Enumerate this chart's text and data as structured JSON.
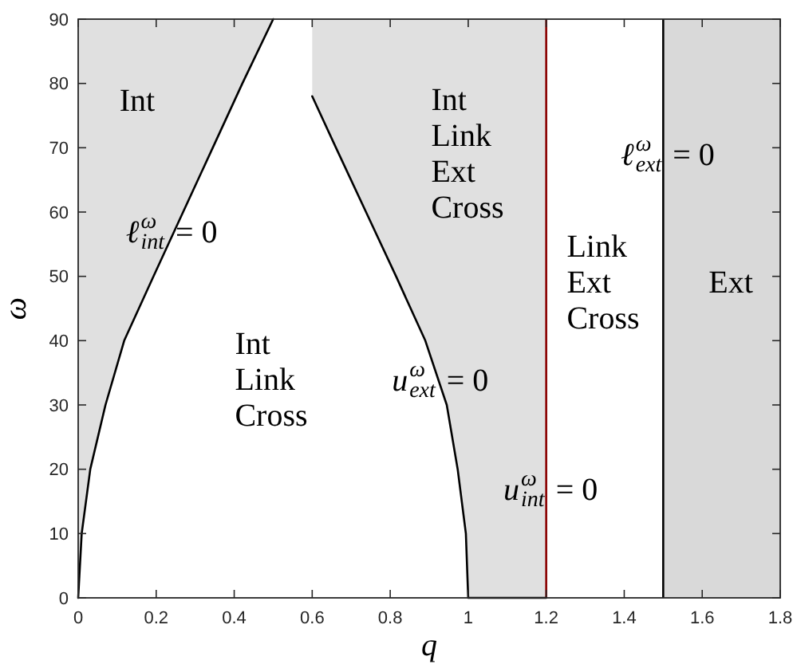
{
  "chart_data": {
    "type": "line",
    "xlabel": "q",
    "ylabel": "ω",
    "xlim": [
      0,
      1.8
    ],
    "xticks": [
      0,
      0.2,
      0.4,
      0.6,
      0.8,
      1,
      1.2,
      1.4,
      1.6,
      1.8
    ],
    "ylim": [
      0,
      90
    ],
    "yticks": [
      0,
      10,
      20,
      30,
      40,
      50,
      60,
      70,
      80,
      90
    ],
    "series": [
      {
        "color": "#000000",
        "x": [
          0,
          0.009,
          0.031,
          0.07,
          0.118,
          0.193,
          0.269,
          0.345,
          0.421,
          0.5
        ],
        "values": [
          0,
          10,
          20,
          30,
          40,
          50,
          60,
          70,
          80,
          90
        ],
        "lower": [
          0,
          10,
          20,
          30,
          40,
          50,
          60,
          70,
          80,
          90
        ],
        "upper": [
          90,
          90,
          90,
          90,
          90,
          90,
          90,
          90,
          90,
          90
        ]
      },
      {
        "color": "#000000",
        "x": [
          0.6,
          0.661,
          0.738,
          0.815,
          0.89,
          0.945,
          0.973,
          0.994,
          1,
          1.2
        ],
        "values": [
          78,
          70,
          60,
          50,
          40,
          30,
          20,
          10,
          0,
          0
        ],
        "lower": [
          78,
          70,
          60,
          50,
          40,
          30,
          20,
          10,
          0,
          0
        ],
        "upper": [
          90,
          90,
          90,
          90,
          90,
          90,
          90,
          90,
          90,
          90
        ]
      }
    ],
    "ref_lines": [
      {
        "axis": "x",
        "value": 1.2,
        "color": "#8b0000"
      },
      {
        "axis": "x",
        "value": 1.5,
        "color": "#000000"
      }
    ],
    "bands": [
      {
        "axis": "x",
        "from": 1.5,
        "to": 1.8,
        "color": "#d9d9d9"
      }
    ],
    "annotations": [
      "Int",
      "Int\nLink\nCross",
      "Int\nLink\nExt\nCross",
      "Link\nExt\nCross",
      "Ext",
      {
        "text": "ℓ$^{ω}$$_{int}$ = 0",
        "x": 0.225,
        "y": 57
      },
      {
        "text": "u$^{ω}$$_{ext}$ = 0",
        "x": 0.92,
        "y": 34
      },
      {
        "text": "u$^{ω}$$_{int}$ = 0",
        "x": 1.2,
        "y": 17
      },
      {
        "text": "ℓ$^{ω}$$_{ext}$ = 0",
        "x": 1.5,
        "y": 69
      }
    ]
  }
}
